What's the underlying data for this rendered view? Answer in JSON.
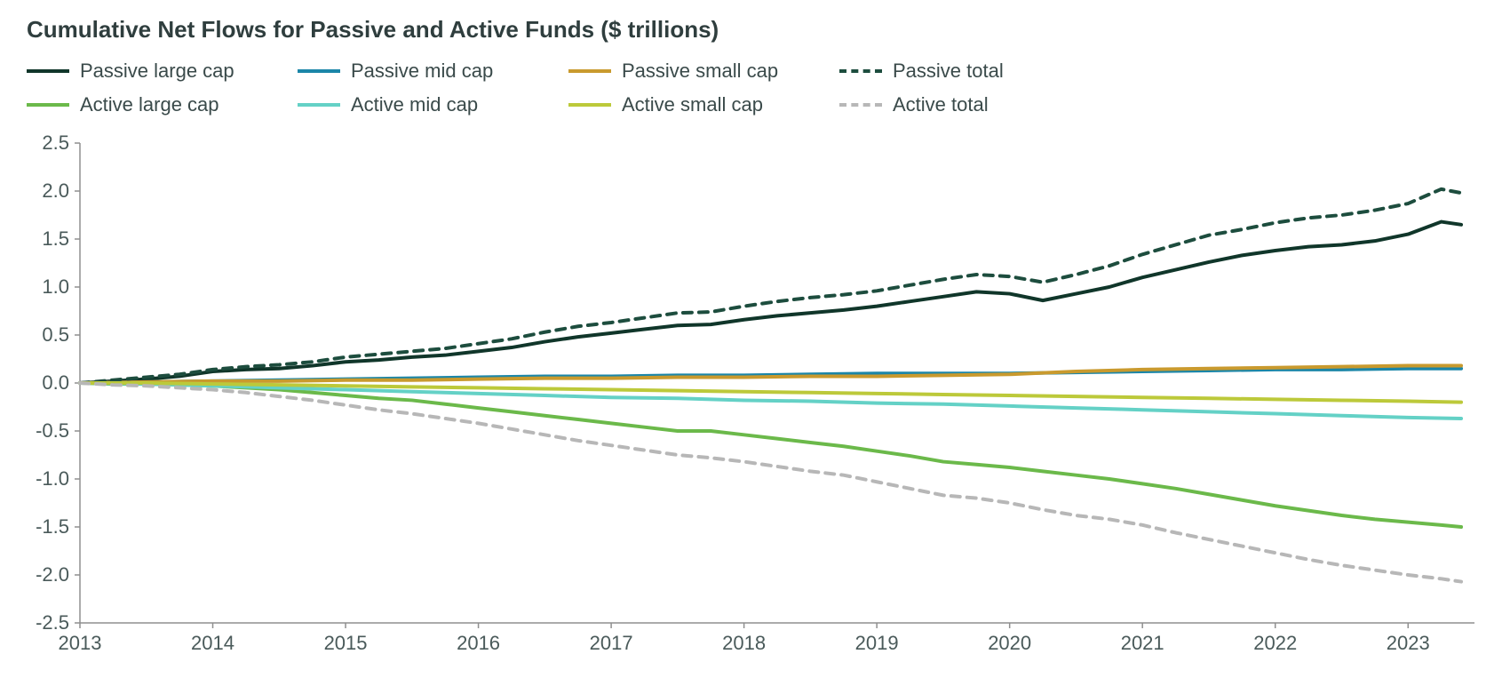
{
  "title": "Cumulative Net Flows for Passive and Active Funds ($ trillions)",
  "chart": {
    "type": "line",
    "background_color": "#ffffff",
    "axis_color": "#8f8f8f",
    "tick_font_size": 22,
    "tick_font_color": "#4a5a5a",
    "line_width_solid": 4,
    "line_width_dashed": 4,
    "dash_pattern": "10,8",
    "x": {
      "min": 2013,
      "max": 2023.5,
      "ticks": [
        2013,
        2014,
        2015,
        2016,
        2017,
        2018,
        2019,
        2020,
        2021,
        2022,
        2023
      ],
      "tick_labels": [
        "2013",
        "2014",
        "2015",
        "2016",
        "2017",
        "2018",
        "2019",
        "2020",
        "2021",
        "2022",
        "2023"
      ]
    },
    "y": {
      "min": -2.5,
      "max": 2.5,
      "ticks": [
        -2.5,
        -2.0,
        -1.5,
        -1.0,
        -0.5,
        0.0,
        0.5,
        1.0,
        1.5,
        2.0,
        2.5
      ],
      "tick_labels": [
        "-2.5",
        "-2.0",
        "-1.5",
        "-1.0",
        "-0.5",
        "0.0",
        "0.5",
        "1.0",
        "1.5",
        "2.0",
        "2.5"
      ]
    },
    "series": [
      {
        "key": "passive_large_cap",
        "label": "Passive large cap",
        "color": "#10362a",
        "dashed": false,
        "data": [
          [
            2013.0,
            0.0
          ],
          [
            2013.25,
            0.02
          ],
          [
            2013.5,
            0.04
          ],
          [
            2013.75,
            0.07
          ],
          [
            2014.0,
            0.12
          ],
          [
            2014.25,
            0.14
          ],
          [
            2014.5,
            0.15
          ],
          [
            2014.75,
            0.18
          ],
          [
            2015.0,
            0.22
          ],
          [
            2015.25,
            0.24
          ],
          [
            2015.5,
            0.27
          ],
          [
            2015.75,
            0.29
          ],
          [
            2016.0,
            0.33
          ],
          [
            2016.25,
            0.37
          ],
          [
            2016.5,
            0.43
          ],
          [
            2016.75,
            0.48
          ],
          [
            2017.0,
            0.52
          ],
          [
            2017.25,
            0.56
          ],
          [
            2017.5,
            0.6
          ],
          [
            2017.75,
            0.61
          ],
          [
            2018.0,
            0.66
          ],
          [
            2018.25,
            0.7
          ],
          [
            2018.5,
            0.73
          ],
          [
            2018.75,
            0.76
          ],
          [
            2019.0,
            0.8
          ],
          [
            2019.25,
            0.85
          ],
          [
            2019.5,
            0.9
          ],
          [
            2019.75,
            0.95
          ],
          [
            2020.0,
            0.93
          ],
          [
            2020.25,
            0.86
          ],
          [
            2020.5,
            0.93
          ],
          [
            2020.75,
            1.0
          ],
          [
            2021.0,
            1.1
          ],
          [
            2021.25,
            1.18
          ],
          [
            2021.5,
            1.26
          ],
          [
            2021.75,
            1.33
          ],
          [
            2022.0,
            1.38
          ],
          [
            2022.25,
            1.42
          ],
          [
            2022.5,
            1.44
          ],
          [
            2022.75,
            1.48
          ],
          [
            2023.0,
            1.55
          ],
          [
            2023.25,
            1.68
          ],
          [
            2023.4,
            1.65
          ]
        ]
      },
      {
        "key": "passive_mid_cap",
        "label": "Passive mid cap",
        "color": "#1b86a8",
        "dashed": false,
        "data": [
          [
            2013.0,
            0.0
          ],
          [
            2013.5,
            0.01
          ],
          [
            2014.0,
            0.02
          ],
          [
            2014.5,
            0.03
          ],
          [
            2015.0,
            0.04
          ],
          [
            2015.5,
            0.05
          ],
          [
            2016.0,
            0.06
          ],
          [
            2016.5,
            0.07
          ],
          [
            2017.0,
            0.07
          ],
          [
            2017.5,
            0.08
          ],
          [
            2018.0,
            0.08
          ],
          [
            2018.5,
            0.09
          ],
          [
            2019.0,
            0.1
          ],
          [
            2019.5,
            0.1
          ],
          [
            2020.0,
            0.1
          ],
          [
            2020.5,
            0.11
          ],
          [
            2021.0,
            0.12
          ],
          [
            2021.5,
            0.13
          ],
          [
            2022.0,
            0.14
          ],
          [
            2022.5,
            0.14
          ],
          [
            2023.0,
            0.15
          ],
          [
            2023.4,
            0.15
          ]
        ]
      },
      {
        "key": "passive_small_cap",
        "label": "Passive small cap",
        "color": "#c99a2e",
        "dashed": false,
        "data": [
          [
            2013.0,
            0.0
          ],
          [
            2013.5,
            0.01
          ],
          [
            2014.0,
            0.02
          ],
          [
            2014.5,
            0.02
          ],
          [
            2015.0,
            0.03
          ],
          [
            2015.5,
            0.03
          ],
          [
            2016.0,
            0.04
          ],
          [
            2016.5,
            0.05
          ],
          [
            2017.0,
            0.05
          ],
          [
            2017.5,
            0.06
          ],
          [
            2018.0,
            0.06
          ],
          [
            2018.5,
            0.07
          ],
          [
            2019.0,
            0.07
          ],
          [
            2019.5,
            0.08
          ],
          [
            2020.0,
            0.09
          ],
          [
            2020.5,
            0.12
          ],
          [
            2021.0,
            0.14
          ],
          [
            2021.5,
            0.15
          ],
          [
            2022.0,
            0.16
          ],
          [
            2022.5,
            0.17
          ],
          [
            2023.0,
            0.18
          ],
          [
            2023.4,
            0.18
          ]
        ]
      },
      {
        "key": "passive_total",
        "label": "Passive total",
        "color": "#1d4d3e",
        "dashed": true,
        "data": [
          [
            2013.0,
            0.0
          ],
          [
            2013.25,
            0.03
          ],
          [
            2013.5,
            0.06
          ],
          [
            2013.75,
            0.09
          ],
          [
            2014.0,
            0.14
          ],
          [
            2014.25,
            0.17
          ],
          [
            2014.5,
            0.19
          ],
          [
            2014.75,
            0.22
          ],
          [
            2015.0,
            0.27
          ],
          [
            2015.25,
            0.3
          ],
          [
            2015.5,
            0.33
          ],
          [
            2015.75,
            0.36
          ],
          [
            2016.0,
            0.41
          ],
          [
            2016.25,
            0.46
          ],
          [
            2016.5,
            0.53
          ],
          [
            2016.75,
            0.59
          ],
          [
            2017.0,
            0.63
          ],
          [
            2017.25,
            0.68
          ],
          [
            2017.5,
            0.73
          ],
          [
            2017.75,
            0.74
          ],
          [
            2018.0,
            0.8
          ],
          [
            2018.25,
            0.85
          ],
          [
            2018.5,
            0.89
          ],
          [
            2018.75,
            0.92
          ],
          [
            2019.0,
            0.96
          ],
          [
            2019.25,
            1.02
          ],
          [
            2019.5,
            1.08
          ],
          [
            2019.75,
            1.13
          ],
          [
            2020.0,
            1.11
          ],
          [
            2020.25,
            1.05
          ],
          [
            2020.5,
            1.13
          ],
          [
            2020.75,
            1.22
          ],
          [
            2021.0,
            1.34
          ],
          [
            2021.25,
            1.44
          ],
          [
            2021.5,
            1.54
          ],
          [
            2021.75,
            1.6
          ],
          [
            2022.0,
            1.67
          ],
          [
            2022.25,
            1.72
          ],
          [
            2022.5,
            1.75
          ],
          [
            2022.75,
            1.8
          ],
          [
            2023.0,
            1.87
          ],
          [
            2023.25,
            2.02
          ],
          [
            2023.4,
            1.98
          ]
        ]
      },
      {
        "key": "active_large_cap",
        "label": "Active large cap",
        "color": "#6bb94a",
        "dashed": false,
        "data": [
          [
            2013.0,
            0.0
          ],
          [
            2013.25,
            -0.01
          ],
          [
            2013.5,
            -0.01
          ],
          [
            2013.75,
            -0.02
          ],
          [
            2014.0,
            -0.03
          ],
          [
            2014.25,
            -0.05
          ],
          [
            2014.5,
            -0.07
          ],
          [
            2014.75,
            -0.1
          ],
          [
            2015.0,
            -0.13
          ],
          [
            2015.25,
            -0.16
          ],
          [
            2015.5,
            -0.18
          ],
          [
            2015.75,
            -0.22
          ],
          [
            2016.0,
            -0.26
          ],
          [
            2016.25,
            -0.3
          ],
          [
            2016.5,
            -0.34
          ],
          [
            2016.75,
            -0.38
          ],
          [
            2017.0,
            -0.42
          ],
          [
            2017.25,
            -0.46
          ],
          [
            2017.5,
            -0.5
          ],
          [
            2017.75,
            -0.5
          ],
          [
            2018.0,
            -0.54
          ],
          [
            2018.25,
            -0.58
          ],
          [
            2018.5,
            -0.62
          ],
          [
            2018.75,
            -0.66
          ],
          [
            2019.0,
            -0.71
          ],
          [
            2019.25,
            -0.76
          ],
          [
            2019.5,
            -0.82
          ],
          [
            2019.75,
            -0.85
          ],
          [
            2020.0,
            -0.88
          ],
          [
            2020.25,
            -0.92
          ],
          [
            2020.5,
            -0.96
          ],
          [
            2020.75,
            -1.0
          ],
          [
            2021.0,
            -1.05
          ],
          [
            2021.25,
            -1.1
          ],
          [
            2021.5,
            -1.16
          ],
          [
            2021.75,
            -1.22
          ],
          [
            2022.0,
            -1.28
          ],
          [
            2022.25,
            -1.33
          ],
          [
            2022.5,
            -1.38
          ],
          [
            2022.75,
            -1.42
          ],
          [
            2023.0,
            -1.45
          ],
          [
            2023.25,
            -1.48
          ],
          [
            2023.4,
            -1.5
          ]
        ]
      },
      {
        "key": "active_mid_cap",
        "label": "Active mid cap",
        "color": "#64d1c6",
        "dashed": false,
        "data": [
          [
            2013.0,
            0.0
          ],
          [
            2013.5,
            -0.01
          ],
          [
            2014.0,
            -0.03
          ],
          [
            2014.5,
            -0.05
          ],
          [
            2015.0,
            -0.07
          ],
          [
            2015.5,
            -0.09
          ],
          [
            2016.0,
            -0.11
          ],
          [
            2016.5,
            -0.13
          ],
          [
            2017.0,
            -0.15
          ],
          [
            2017.5,
            -0.16
          ],
          [
            2018.0,
            -0.18
          ],
          [
            2018.5,
            -0.19
          ],
          [
            2019.0,
            -0.21
          ],
          [
            2019.5,
            -0.22
          ],
          [
            2020.0,
            -0.24
          ],
          [
            2020.5,
            -0.26
          ],
          [
            2021.0,
            -0.28
          ],
          [
            2021.5,
            -0.3
          ],
          [
            2022.0,
            -0.32
          ],
          [
            2022.5,
            -0.34
          ],
          [
            2023.0,
            -0.36
          ],
          [
            2023.4,
            -0.37
          ]
        ]
      },
      {
        "key": "active_small_cap",
        "label": "Active small cap",
        "color": "#bcc93a",
        "dashed": false,
        "data": [
          [
            2013.0,
            0.0
          ],
          [
            2013.5,
            0.0
          ],
          [
            2014.0,
            -0.01
          ],
          [
            2014.5,
            -0.02
          ],
          [
            2015.0,
            -0.03
          ],
          [
            2015.5,
            -0.04
          ],
          [
            2016.0,
            -0.05
          ],
          [
            2016.5,
            -0.06
          ],
          [
            2017.0,
            -0.07
          ],
          [
            2017.5,
            -0.08
          ],
          [
            2018.0,
            -0.09
          ],
          [
            2018.5,
            -0.1
          ],
          [
            2019.0,
            -0.11
          ],
          [
            2019.5,
            -0.12
          ],
          [
            2020.0,
            -0.13
          ],
          [
            2020.5,
            -0.14
          ],
          [
            2021.0,
            -0.15
          ],
          [
            2021.5,
            -0.16
          ],
          [
            2022.0,
            -0.17
          ],
          [
            2022.5,
            -0.18
          ],
          [
            2023.0,
            -0.19
          ],
          [
            2023.4,
            -0.2
          ]
        ]
      },
      {
        "key": "active_total",
        "label": "Active total",
        "color": "#b7b7b7",
        "dashed": true,
        "data": [
          [
            2013.0,
            0.0
          ],
          [
            2013.25,
            -0.02
          ],
          [
            2013.5,
            -0.03
          ],
          [
            2013.75,
            -0.05
          ],
          [
            2014.0,
            -0.07
          ],
          [
            2014.25,
            -0.1
          ],
          [
            2014.5,
            -0.14
          ],
          [
            2014.75,
            -0.18
          ],
          [
            2015.0,
            -0.23
          ],
          [
            2015.25,
            -0.28
          ],
          [
            2015.5,
            -0.32
          ],
          [
            2015.75,
            -0.37
          ],
          [
            2016.0,
            -0.42
          ],
          [
            2016.25,
            -0.48
          ],
          [
            2016.5,
            -0.54
          ],
          [
            2016.75,
            -0.6
          ],
          [
            2017.0,
            -0.65
          ],
          [
            2017.25,
            -0.7
          ],
          [
            2017.5,
            -0.75
          ],
          [
            2017.75,
            -0.78
          ],
          [
            2018.0,
            -0.82
          ],
          [
            2018.25,
            -0.87
          ],
          [
            2018.5,
            -0.92
          ],
          [
            2018.75,
            -0.96
          ],
          [
            2019.0,
            -1.03
          ],
          [
            2019.25,
            -1.1
          ],
          [
            2019.5,
            -1.17
          ],
          [
            2019.75,
            -1.2
          ],
          [
            2020.0,
            -1.25
          ],
          [
            2020.25,
            -1.32
          ],
          [
            2020.5,
            -1.38
          ],
          [
            2020.75,
            -1.42
          ],
          [
            2021.0,
            -1.48
          ],
          [
            2021.25,
            -1.56
          ],
          [
            2021.5,
            -1.63
          ],
          [
            2021.75,
            -1.7
          ],
          [
            2022.0,
            -1.77
          ],
          [
            2022.25,
            -1.84
          ],
          [
            2022.5,
            -1.9
          ],
          [
            2022.75,
            -1.95
          ],
          [
            2023.0,
            -2.0
          ],
          [
            2023.25,
            -2.04
          ],
          [
            2023.4,
            -2.07
          ]
        ]
      }
    ],
    "legend_order": [
      "passive_large_cap",
      "passive_mid_cap",
      "passive_small_cap",
      "passive_total",
      "active_large_cap",
      "active_mid_cap",
      "active_small_cap",
      "active_total"
    ]
  }
}
